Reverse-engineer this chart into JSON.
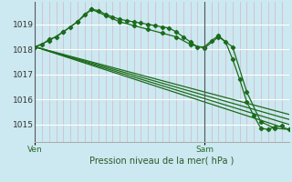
{
  "bg_color": "#cce8f0",
  "grid_color": "#b8dde8",
  "line_color": "#1a6b1a",
  "xlabel": "Pression niveau de la mer( hPa )",
  "yticks": [
    1015,
    1016,
    1017,
    1018,
    1019
  ],
  "ylim": [
    1014.3,
    1019.9
  ],
  "xlim": [
    0,
    36
  ],
  "ven_x": 0,
  "sam_x": 24,
  "series": [
    {
      "x": [
        0,
        1,
        2,
        3,
        4,
        5,
        6,
        7,
        8,
        9,
        10,
        11,
        12,
        13,
        14,
        15,
        16,
        17,
        18,
        19,
        20,
        21,
        22,
        23,
        24,
        25,
        26,
        27,
        28,
        29,
        30,
        31,
        32,
        33,
        34,
        35
      ],
      "y": [
        1018.1,
        1018.2,
        1018.4,
        1018.5,
        1018.7,
        1018.9,
        1019.1,
        1019.4,
        1019.6,
        1019.55,
        1019.4,
        1019.3,
        1019.2,
        1019.15,
        1019.1,
        1019.05,
        1019.0,
        1018.95,
        1018.9,
        1018.85,
        1018.7,
        1018.5,
        1018.3,
        1018.1,
        1018.1,
        1018.35,
        1018.55,
        1018.3,
        1017.6,
        1016.8,
        1015.9,
        1015.35,
        1014.85,
        1014.8,
        1014.9,
        1014.95
      ],
      "marker": "D",
      "markersize": 2.2
    },
    {
      "x": [
        0,
        2,
        4,
        6,
        8,
        10,
        12,
        14,
        16,
        18,
        20,
        22,
        24,
        26,
        28,
        30,
        32,
        34,
        36
      ],
      "y": [
        1018.1,
        1018.35,
        1018.7,
        1019.1,
        1019.6,
        1019.35,
        1019.1,
        1018.95,
        1018.8,
        1018.65,
        1018.5,
        1018.2,
        1018.05,
        1018.5,
        1018.1,
        1016.3,
        1015.1,
        1014.85,
        1014.8
      ],
      "marker": "D",
      "markersize": 2.2
    },
    {
      "x": [
        0,
        36
      ],
      "y": [
        1018.1,
        1014.8
      ],
      "marker": null,
      "markersize": 0
    },
    {
      "x": [
        0,
        36
      ],
      "y": [
        1018.1,
        1015.0
      ],
      "marker": null,
      "markersize": 0
    },
    {
      "x": [
        0,
        36
      ],
      "y": [
        1018.1,
        1015.2
      ],
      "marker": null,
      "markersize": 0
    },
    {
      "x": [
        0,
        36
      ],
      "y": [
        1018.1,
        1015.4
      ],
      "marker": null,
      "markersize": 0
    }
  ],
  "ven_label": "Ven",
  "sam_label": "Sam"
}
